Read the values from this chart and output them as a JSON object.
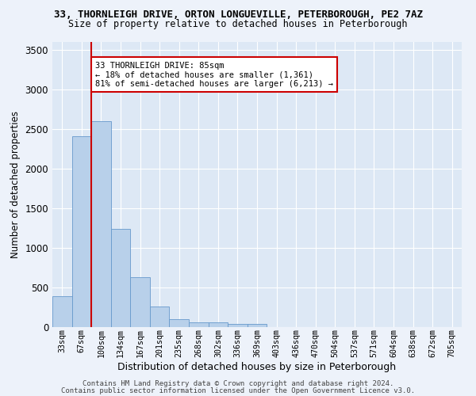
{
  "title_line1": "33, THORNLEIGH DRIVE, ORTON LONGUEVILLE, PETERBOROUGH, PE2 7AZ",
  "title_line2": "Size of property relative to detached houses in Peterborough",
  "xlabel": "Distribution of detached houses by size in Peterborough",
  "ylabel": "Number of detached properties",
  "categories": [
    "33sqm",
    "67sqm",
    "100sqm",
    "134sqm",
    "167sqm",
    "201sqm",
    "235sqm",
    "268sqm",
    "302sqm",
    "336sqm",
    "369sqm",
    "403sqm",
    "436sqm",
    "470sqm",
    "504sqm",
    "537sqm",
    "571sqm",
    "604sqm",
    "638sqm",
    "672sqm",
    "705sqm"
  ],
  "values": [
    390,
    2410,
    2600,
    1240,
    630,
    255,
    95,
    60,
    55,
    40,
    35,
    0,
    0,
    0,
    0,
    0,
    0,
    0,
    0,
    0,
    0
  ],
  "bar_color": "#b8d0ea",
  "bar_edgecolor": "#6699cc",
  "vline_x": 1.5,
  "vline_color": "#cc0000",
  "annotation_text": "33 THORNLEIGH DRIVE: 85sqm\n← 18% of detached houses are smaller (1,361)\n81% of semi-detached houses are larger (6,213) →",
  "annotation_box_facecolor": "#ffffff",
  "annotation_box_edgecolor": "#cc0000",
  "ylim": [
    0,
    3600
  ],
  "yticks": [
    0,
    500,
    1000,
    1500,
    2000,
    2500,
    3000,
    3500
  ],
  "background_color": "#dde8f5",
  "grid_color": "#ffffff",
  "fig_facecolor": "#edf2fa",
  "footer_line1": "Contains HM Land Registry data © Crown copyright and database right 2024.",
  "footer_line2": "Contains public sector information licensed under the Open Government Licence v3.0."
}
